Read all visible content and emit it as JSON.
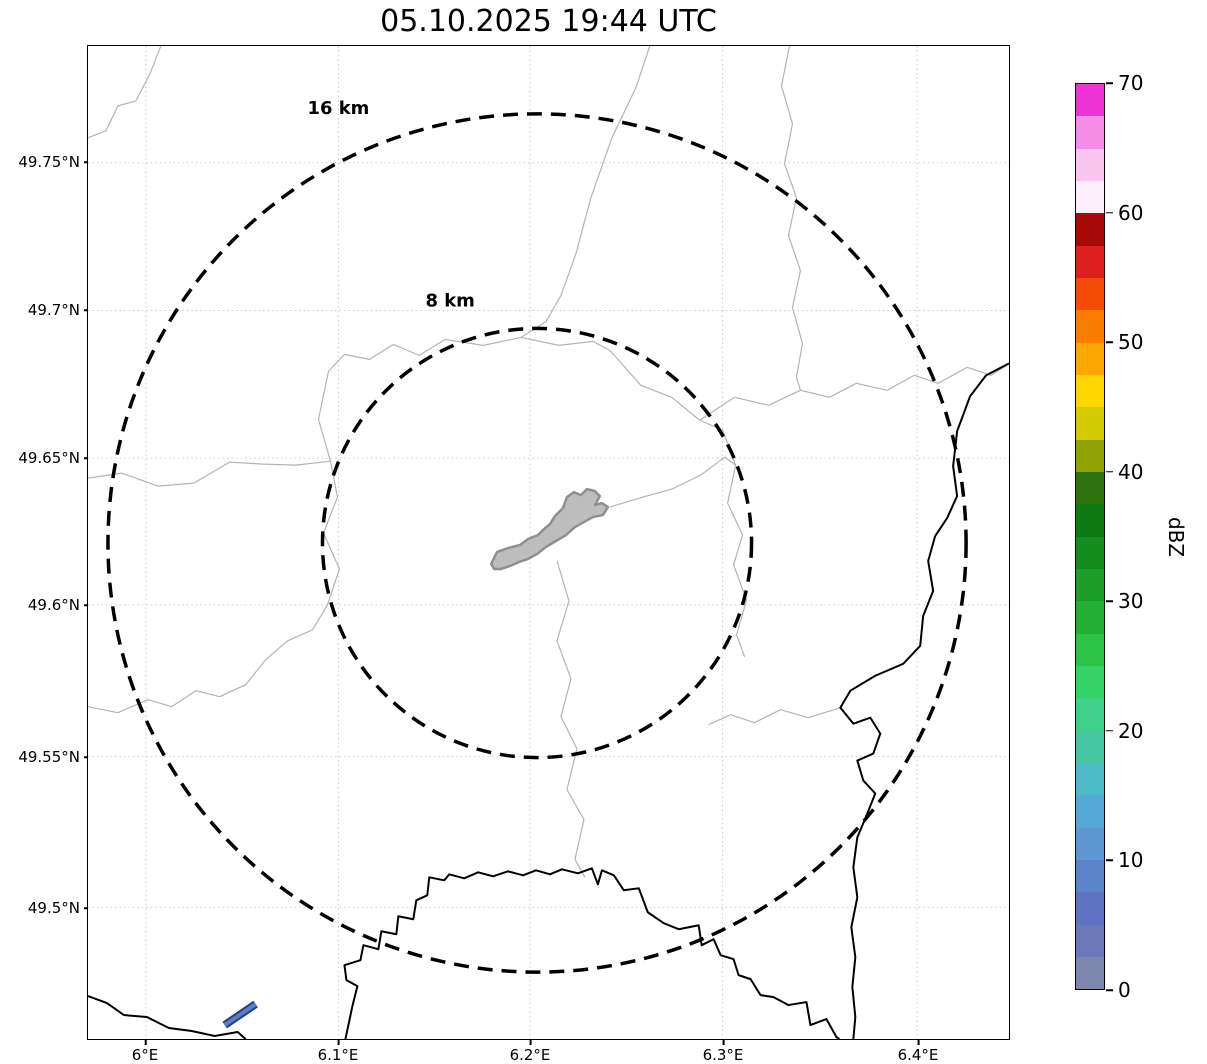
{
  "title": "05.10.2025 19:44 UTC",
  "map": {
    "range_rings": {
      "outer_label": "16 km",
      "inner_label": "8 km"
    }
  },
  "axes": {
    "x_ticks": [
      "6°E",
      "6.1°E",
      "6.2°E",
      "6.3°E",
      "6.4°E"
    ],
    "y_ticks": [
      "49.75°N",
      "49.7°N",
      "49.65°N",
      "49.6°N",
      "49.55°N",
      "49.5°N"
    ]
  },
  "colorbar": {
    "label": "dBZ",
    "min": 0,
    "max": 70,
    "tick_values": [
      0,
      10,
      20,
      30,
      40,
      50,
      60,
      70
    ],
    "colors_bottom_to_top": [
      "#7d87ad",
      "#6b79b8",
      "#5e73c1",
      "#5b84ca",
      "#5f97d2",
      "#55a9d6",
      "#4cbbc7",
      "#47c6a4",
      "#3fd08a",
      "#35d266",
      "#2dc248",
      "#24af36",
      "#1d9e2a",
      "#158c1e",
      "#0e7a14",
      "#2e720d",
      "#8fa305",
      "#d3cc04",
      "#fdd500",
      "#fca800",
      "#fb7d00",
      "#f64a07",
      "#dc1f1f",
      "#a80909",
      "#fdeffb",
      "#f9c6f1",
      "#f58ce6",
      "#ee33d4"
    ]
  }
}
